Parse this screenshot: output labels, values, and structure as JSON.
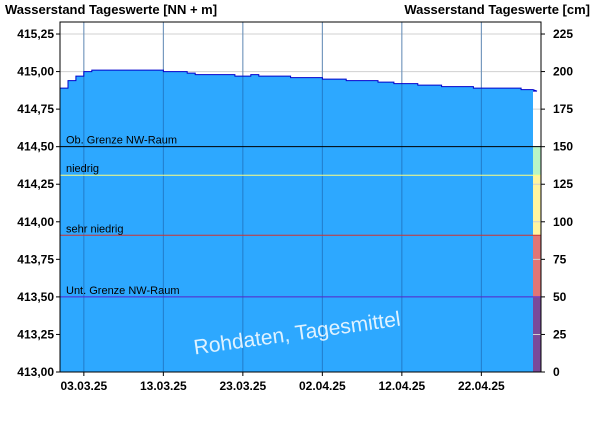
{
  "chart_data": {
    "type": "area",
    "title_left": "Wasserstand Tageswerte [NN + m]",
    "title_right": "Wasserstand Tageswerte [cm]",
    "watermark": "Rohdaten, Tagesmittel",
    "x_dates": [
      "2025-02-28",
      "2025-03-01",
      "2025-03-02",
      "2025-03-03",
      "2025-03-04",
      "2025-03-05",
      "2025-03-06",
      "2025-03-07",
      "2025-03-08",
      "2025-03-09",
      "2025-03-10",
      "2025-03-11",
      "2025-03-12",
      "2025-03-13",
      "2025-03-14",
      "2025-03-15",
      "2025-03-16",
      "2025-03-17",
      "2025-03-18",
      "2025-03-19",
      "2025-03-20",
      "2025-03-21",
      "2025-03-22",
      "2025-03-23",
      "2025-03-24",
      "2025-03-25",
      "2025-03-26",
      "2025-03-27",
      "2025-03-28",
      "2025-03-29",
      "2025-03-30",
      "2025-03-31",
      "2025-04-01",
      "2025-04-02",
      "2025-04-03",
      "2025-04-04",
      "2025-04-05",
      "2025-04-06",
      "2025-04-07",
      "2025-04-08",
      "2025-04-09",
      "2025-04-10",
      "2025-04-11",
      "2025-04-12",
      "2025-04-13",
      "2025-04-14",
      "2025-04-15",
      "2025-04-16",
      "2025-04-17",
      "2025-04-18",
      "2025-04-19",
      "2025-04-20",
      "2025-04-21",
      "2025-04-22",
      "2025-04-23",
      "2025-04-24",
      "2025-04-25",
      "2025-04-26",
      "2025-04-27",
      "2025-04-28",
      "2025-04-29"
    ],
    "values_cm": [
      189,
      194,
      197,
      200,
      201,
      201,
      201,
      201,
      201,
      201,
      201,
      201,
      201,
      200,
      200,
      200,
      199,
      198,
      198,
      198,
      198,
      198,
      197,
      197,
      198,
      197,
      197,
      197,
      197,
      196,
      196,
      196,
      196,
      195,
      195,
      195,
      194,
      194,
      194,
      194,
      193,
      193,
      192,
      192,
      192,
      191,
      191,
      191,
      190,
      190,
      190,
      190,
      189,
      189,
      189,
      189,
      189,
      189,
      188,
      188,
      187
    ],
    "x_ticks": [
      "03.03.25",
      "13.03.25",
      "23.03.25",
      "02.04.25",
      "12.04.25",
      "22.04.25"
    ],
    "y_left_ticks": [
      "413,00",
      "413,25",
      "413,50",
      "413,75",
      "414,00",
      "414,25",
      "414,50",
      "414,75",
      "415,00",
      "415,25"
    ],
    "y_right_ticks": [
      "0",
      "25",
      "50",
      "75",
      "100",
      "125",
      "150",
      "175",
      "200",
      "225"
    ],
    "y_range_cm": [
      0,
      233
    ],
    "datum_offset_m": 413.0,
    "thresholds": [
      {
        "label": "Ob. Grenze NW-Raum",
        "cm": 150,
        "color": "#000000"
      },
      {
        "label": "niedrig",
        "cm": 131,
        "color": "#ffff80"
      },
      {
        "label": "sehr niedrig",
        "cm": 91,
        "color": "#cc3333"
      },
      {
        "label": "Unt. Grenze NW-Raum",
        "cm": 50,
        "color": "#5522cc"
      }
    ],
    "band_colors": {
      "above_150": "#ffffff",
      "131_150": "#b8f5c6",
      "91_131": "#fff5a0",
      "50_91": "#e07575",
      "0_50": "#7a4a9a"
    },
    "fill_color": "#2da8ff",
    "line_color": "#0000cc",
    "grid": true
  }
}
